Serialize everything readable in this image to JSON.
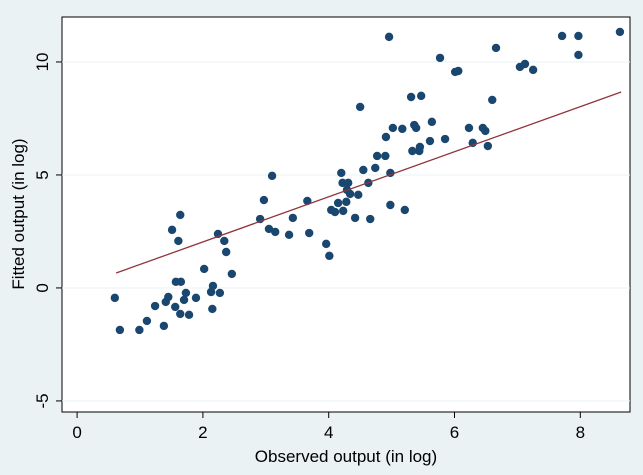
{
  "chart_data": {
    "type": "scatter",
    "xlabel": "Observed output (in log)",
    "ylabel": "Fitted output (in log)",
    "xlim": [
      -0.24,
      8.79
    ],
    "ylim": [
      -5.49,
      11.99
    ],
    "xticks": [
      0,
      2,
      4,
      6,
      8
    ],
    "yticks": [
      -5,
      0,
      5,
      10
    ],
    "grid": true,
    "series": [
      {
        "type": "scatter",
        "color": "#1a476f",
        "x": [
          0.6,
          0.68,
          0.99,
          1.11,
          1.24,
          1.38,
          1.41,
          1.45,
          1.51,
          1.56,
          1.57,
          1.61,
          1.64,
          1.65,
          1.64,
          1.7,
          1.73,
          1.78,
          1.89,
          2.02,
          2.13,
          2.15,
          2.16,
          2.24,
          2.27,
          2.34,
          2.37,
          2.46,
          2.91,
          2.97,
          3.05,
          3.1,
          3.15,
          3.37,
          3.43,
          3.66,
          3.69,
          3.96,
          4.01,
          4.04,
          4.1,
          4.15,
          4.2,
          4.22,
          4.23,
          4.28,
          4.29,
          4.31,
          4.34,
          4.42,
          4.47,
          4.5,
          4.55,
          4.63,
          4.66,
          4.74,
          4.77,
          4.9,
          4.91,
          4.96,
          4.98,
          4.98,
          5.02,
          5.17,
          5.21,
          5.31,
          5.33,
          5.36,
          5.39,
          5.44,
          5.45,
          5.47,
          5.61,
          5.64,
          5.77,
          5.85,
          6.01,
          6.06,
          6.23,
          6.29,
          6.45,
          6.49,
          6.53,
          6.6,
          6.66,
          7.04,
          7.12,
          7.25,
          7.71,
          7.97,
          7.97,
          8.63
        ],
        "values": [
          -0.44,
          -1.86,
          -1.86,
          -1.46,
          -0.8,
          -1.68,
          -0.62,
          -0.4,
          2.57,
          -0.84,
          0.27,
          2.08,
          3.23,
          0.27,
          -1.15,
          -0.53,
          -0.22,
          -1.19,
          -0.44,
          0.84,
          -0.18,
          -0.93,
          0.09,
          2.39,
          -0.22,
          2.08,
          1.59,
          0.62,
          3.05,
          3.89,
          2.61,
          4.96,
          2.48,
          2.35,
          3.1,
          3.85,
          2.43,
          1.95,
          1.42,
          3.45,
          3.36,
          3.76,
          5.09,
          4.65,
          3.41,
          3.81,
          4.34,
          4.65,
          4.16,
          3.1,
          4.12,
          8.01,
          5.22,
          4.65,
          3.05,
          5.31,
          5.84,
          5.84,
          6.68,
          11.11,
          5.09,
          3.67,
          7.08,
          7.04,
          3.45,
          8.45,
          6.06,
          7.21,
          7.08,
          6.06,
          6.24,
          8.5,
          6.5,
          7.35,
          10.18,
          6.59,
          9.56,
          9.6,
          7.08,
          6.42,
          7.08,
          6.95,
          6.28,
          8.32,
          10.62,
          9.78,
          9.91,
          9.65,
          11.15,
          11.15,
          10.31,
          11.33
        ]
      },
      {
        "type": "line",
        "color": "#90353b",
        "x": [
          0.62,
          8.65
        ],
        "values": [
          0.66,
          8.67
        ]
      }
    ]
  }
}
